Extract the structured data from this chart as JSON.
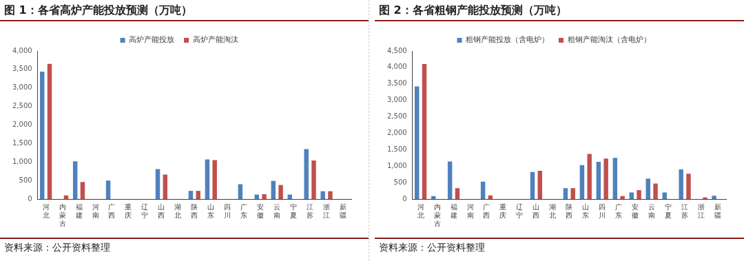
{
  "chart_data": [
    {
      "type": "bar",
      "title": "图 1：各省高炉产能投放预测（万吨）",
      "categories": [
        "河北",
        "内蒙古",
        "福建",
        "河南",
        "广西",
        "重庆",
        "辽宁",
        "山西",
        "湖北",
        "陕西",
        "山东",
        "四川",
        "广东",
        "安徽",
        "云南",
        "宁夏",
        "江苏",
        "浙江",
        "新疆"
      ],
      "series": [
        {
          "name": "高炉产能投放",
          "color": "#4f81bd",
          "values": [
            3440,
            0,
            1020,
            0,
            500,
            0,
            0,
            810,
            0,
            220,
            1070,
            0,
            400,
            120,
            490,
            120,
            1350,
            210,
            0
          ]
        },
        {
          "name": "高炉产能淘汰",
          "color": "#c0504d",
          "values": [
            3650,
            100,
            460,
            0,
            0,
            0,
            0,
            660,
            0,
            220,
            1050,
            0,
            0,
            130,
            380,
            0,
            1040,
            210,
            0
          ]
        }
      ],
      "ylim": [
        0,
        4000
      ],
      "yticks": [
        {
          "value": 0,
          "label": "0"
        },
        {
          "value": 500,
          "label": "500"
        },
        {
          "value": 1000,
          "label": "1,000"
        },
        {
          "value": 1500,
          "label": "1,500"
        },
        {
          "value": 2000,
          "label": "2,000"
        },
        {
          "value": 2500,
          "label": "2,500"
        },
        {
          "value": 3000,
          "label": "3,000"
        },
        {
          "value": 3500,
          "label": "3,500"
        },
        {
          "value": 4000,
          "label": "4,000"
        }
      ],
      "grid": false,
      "legend": "top",
      "annotations": [
        "资料来源：公开资料整理"
      ]
    },
    {
      "type": "bar",
      "title": "图 2：各省粗钢产能投放预测（万吨）",
      "categories": [
        "河北",
        "内蒙古",
        "福建",
        "河南",
        "广西",
        "重庆",
        "辽宁",
        "山西",
        "湖北",
        "陕西",
        "山东",
        "四川",
        "广东",
        "安徽",
        "云南",
        "宁夏",
        "江苏",
        "浙江",
        "新疆"
      ],
      "series": [
        {
          "name": "粗钢产能投放（含电炉）",
          "color": "#4f81bd",
          "values": [
            3420,
            90,
            1140,
            0,
            530,
            0,
            0,
            820,
            0,
            330,
            1030,
            1130,
            1250,
            200,
            620,
            200,
            900,
            0,
            100
          ]
        },
        {
          "name": "粗钢产能淘汰（含电炉）",
          "color": "#c0504d",
          "values": [
            4100,
            0,
            330,
            0,
            110,
            0,
            0,
            860,
            0,
            330,
            1370,
            1230,
            90,
            270,
            470,
            0,
            770,
            50,
            0
          ]
        }
      ],
      "ylim": [
        0,
        4500
      ],
      "yticks": [
        {
          "value": 0,
          "label": "0"
        },
        {
          "value": 500,
          "label": "500"
        },
        {
          "value": 1000,
          "label": "1,000"
        },
        {
          "value": 1500,
          "label": "1,500"
        },
        {
          "value": 2000,
          "label": "2,000"
        },
        {
          "value": 2500,
          "label": "2,500"
        },
        {
          "value": 3000,
          "label": "3,000"
        },
        {
          "value": 3500,
          "label": "3,500"
        },
        {
          "value": 4000,
          "label": "4,000"
        },
        {
          "value": 4500,
          "label": "4,500"
        }
      ],
      "grid": false,
      "legend": "top",
      "annotations": [
        "资料来源：公开资料整理"
      ]
    }
  ]
}
